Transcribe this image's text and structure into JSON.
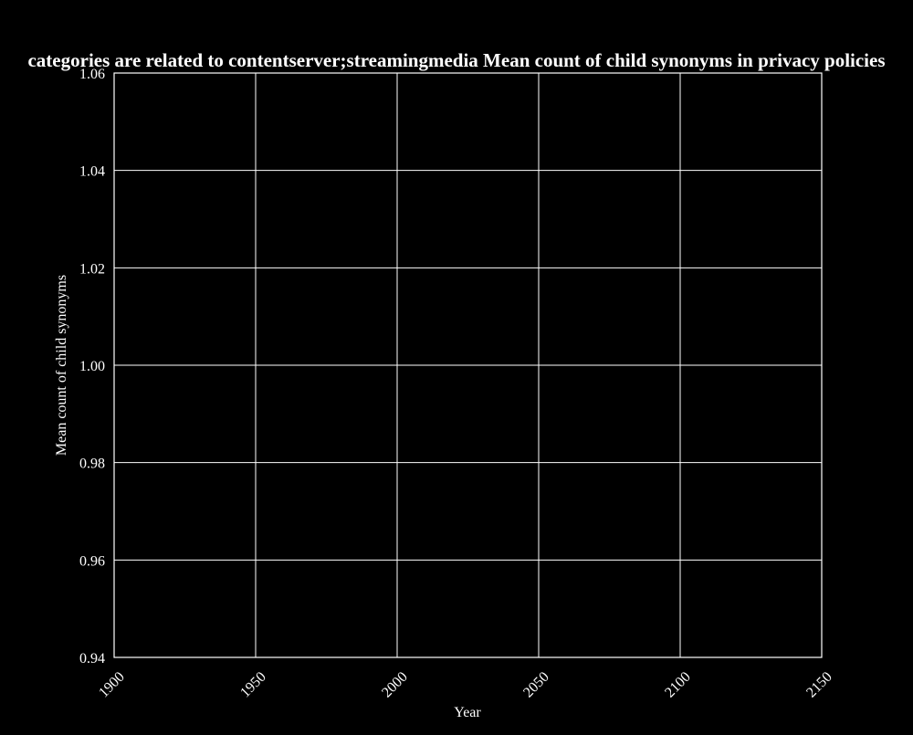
{
  "chart_data": {
    "type": "line",
    "title": "categories are related to contentserver;streamingmedia Mean count of child synonyms in privacy policies",
    "xlabel": "Year",
    "ylabel": "Mean count of child synonyms",
    "xlim": [
      1900,
      2150
    ],
    "ylim": [
      0.94,
      1.06
    ],
    "x_ticks": [
      "1900",
      "1950",
      "2000",
      "2050",
      "2100",
      "2150"
    ],
    "y_ticks": [
      "0.94",
      "0.96",
      "0.98",
      "1.00",
      "1.02",
      "1.04",
      "1.06"
    ],
    "grid": true,
    "series": []
  },
  "colors": {
    "background": "#000000",
    "grid": "#ffffff",
    "text": "#ffffff"
  }
}
